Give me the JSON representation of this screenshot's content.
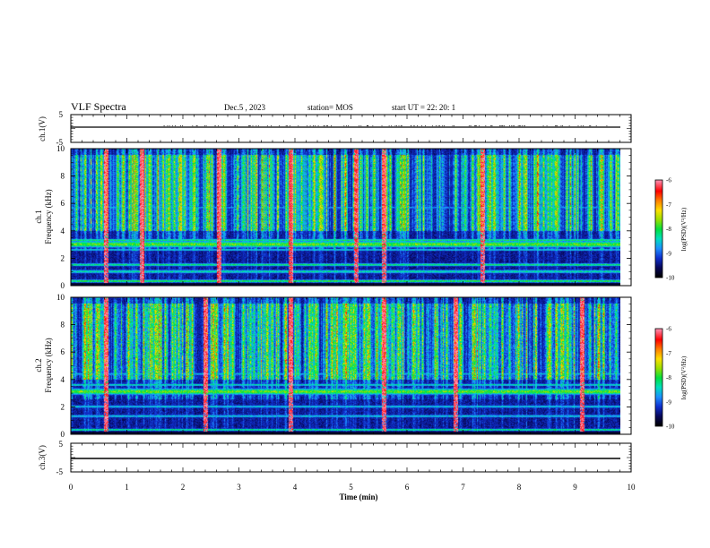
{
  "header": {
    "title": "VLF Spectra",
    "date": "Dec.5 , 2023",
    "station": "station= MOS",
    "start": "start UT = 22: 20: 1"
  },
  "chart_data": [
    {
      "panel": "ch1-waveform",
      "type": "line",
      "ylabel": "ch.1(V)",
      "ylim": [
        -5,
        5
      ],
      "yticks": [
        "5",
        "-5"
      ],
      "x": [
        0,
        9.8
      ],
      "y": [
        0,
        0
      ]
    },
    {
      "panel": "ch1-spectrogram",
      "type": "heatmap",
      "ylabel": "ch.1\nFrequency (kHz)",
      "ylim": [
        0,
        10
      ],
      "yticks": [
        "0",
        "2",
        "4",
        "6",
        "8",
        "10"
      ],
      "colorbar": {
        "label": "log(PSD)(V²/Hz)",
        "range": [
          -10,
          -6
        ],
        "ticks": [
          "-6",
          "-7",
          "-8",
          "-9",
          "-10"
        ]
      }
    },
    {
      "panel": "ch2-spectrogram",
      "type": "heatmap",
      "ylabel": "ch.2\nFrequency (kHz)",
      "ylim": [
        0,
        10
      ],
      "yticks": [
        "0",
        "2",
        "4",
        "6",
        "8",
        "10"
      ],
      "colorbar": {
        "label": "log(PSD)(V²/Hz)",
        "range": [
          -10,
          -6
        ],
        "ticks": [
          "-6",
          "-7",
          "-8",
          "-9",
          "-10"
        ]
      }
    },
    {
      "panel": "ch3-waveform",
      "type": "line",
      "ylabel": "ch.3(V)",
      "ylim": [
        -5,
        5
      ],
      "yticks": [
        "5",
        "-5"
      ],
      "x": [
        0,
        9.8
      ],
      "y": [
        0,
        0
      ]
    }
  ],
  "xaxis": {
    "label": "Time (min)",
    "range": [
      0,
      10
    ],
    "ticks": [
      "0",
      "1",
      "2",
      "3",
      "4",
      "5",
      "6",
      "7",
      "8",
      "9",
      "10"
    ]
  },
  "colors": {
    "background": "#000000",
    "trace": "#000000",
    "colormap": [
      "#000000",
      "#08085a",
      "#1030d0",
      "#1e90ff",
      "#00e0c0",
      "#00e040",
      "#9ae000",
      "#ffe000",
      "#ff8000",
      "#ff0000",
      "#ff80a0",
      "#ffffff"
    ]
  }
}
